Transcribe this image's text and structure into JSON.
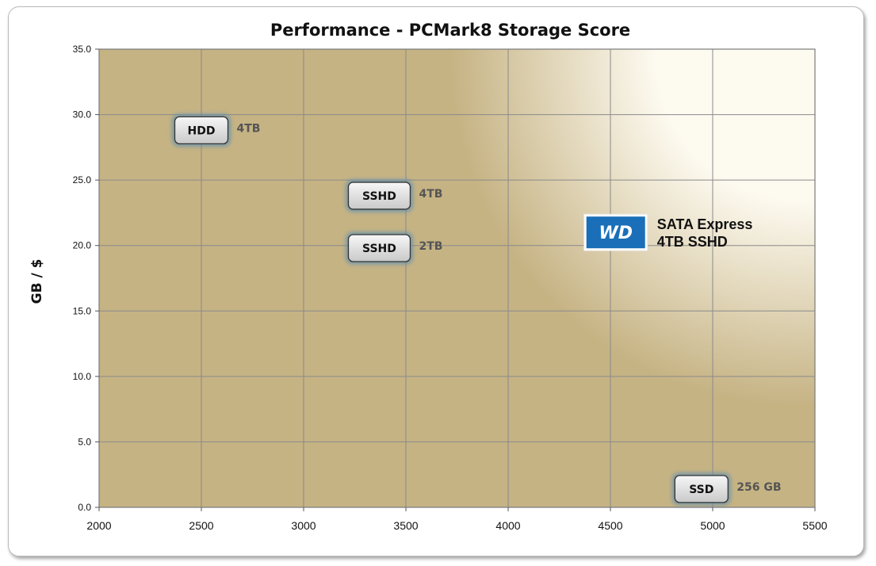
{
  "chart_data": {
    "type": "scatter",
    "title": "Performance - PCMark8 Storage Score",
    "xlabel": "",
    "ylabel": "GB / $",
    "xlim": [
      2000,
      5500
    ],
    "ylim": [
      0,
      35
    ],
    "x_ticks": [
      2000,
      2500,
      3000,
      3500,
      4000,
      4500,
      5000,
      5500
    ],
    "y_ticks": [
      "0.0",
      "5.0",
      "10.0",
      "15.0",
      "20.0",
      "25.0",
      "30.0",
      "35.0"
    ],
    "grid": true,
    "points": [
      {
        "label": "HDD",
        "caption": "4TB",
        "x": 2500,
        "y": 28.8
      },
      {
        "label": "SSHD",
        "caption": "4TB",
        "x": 3370,
        "y": 23.8
      },
      {
        "label": "SSHD",
        "caption": "2TB",
        "x": 3370,
        "y": 19.8
      },
      {
        "label": "SSD",
        "caption": "256 GB",
        "x": 4945,
        "y": 1.4
      }
    ],
    "annotation": {
      "logo": "WD",
      "lines": [
        "SATA Express",
        "4TB SSHD"
      ],
      "x": 4650,
      "y": 21.0
    },
    "colors": {
      "plot_background": "#c6b384",
      "highlight": "#fdfaf0",
      "grid": "#8a8a8a",
      "marker_fill": "#e0e0e0",
      "marker_glow": "#5f8fb0",
      "logo_blue": "#1a6fb8"
    }
  }
}
